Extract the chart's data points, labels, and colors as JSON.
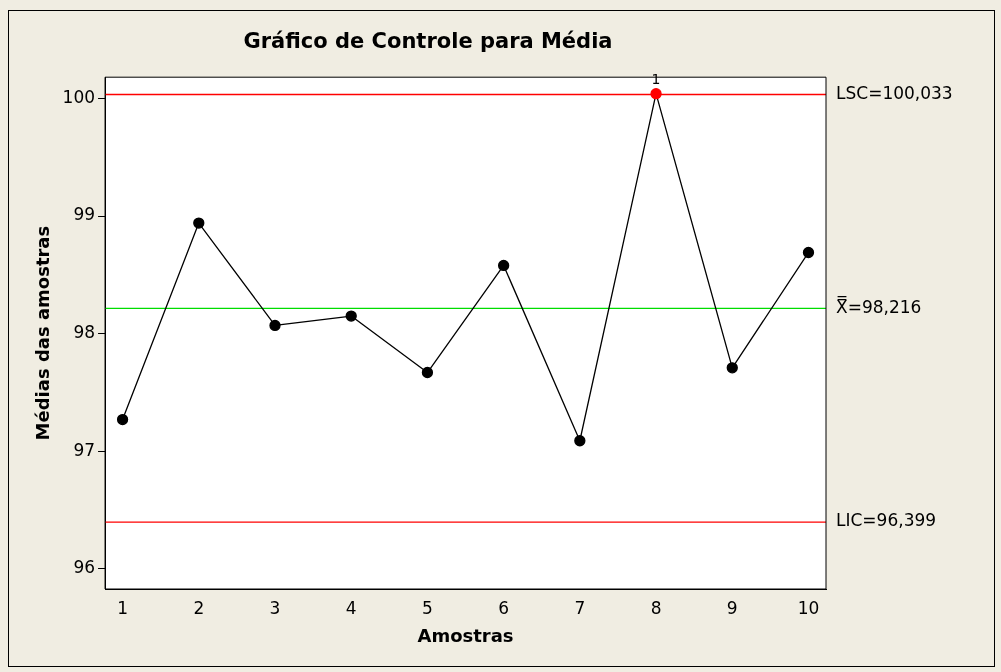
{
  "chart_data": {
    "type": "line",
    "title": "Gráfico de Controle para Média",
    "xlabel": "Amostras",
    "ylabel": "Médias das amostras",
    "x": [
      1,
      2,
      3,
      4,
      5,
      6,
      7,
      8,
      9,
      10
    ],
    "series": [
      {
        "color": "#000000",
        "colors": [
          "#000000",
          "#000000",
          "#000000",
          "#000000",
          "#000000",
          "#000000",
          "#000000",
          "#ff0000",
          "#000000",
          "#000000"
        ],
        "values": [
          97.27,
          98.94,
          98.07,
          98.15,
          97.67,
          98.58,
          97.09,
          100.04,
          97.71,
          98.69
        ]
      }
    ],
    "xlim": [
      0.77,
      10.23
    ],
    "xticks": [
      1,
      2,
      3,
      4,
      5,
      6,
      7,
      8,
      9,
      10
    ],
    "ylim": [
      95.83,
      100.18
    ],
    "yticks": [
      96,
      97,
      98,
      99,
      100
    ],
    "ref_lines": [
      {
        "axis": "y",
        "value": 100.033,
        "label": "LSC=100,033",
        "color": "#ff0000"
      },
      {
        "axis": "y",
        "value": 98.216,
        "label": "X̿=98,216",
        "color": "#00dd00"
      },
      {
        "axis": "y",
        "value": 96.399,
        "label": "LIC=96,399",
        "color": "#ff0000"
      }
    ],
    "annotations": [
      {
        "text": "1",
        "x": 8,
        "y": 100.04
      }
    ],
    "marker": "circle",
    "line_style": "solid",
    "grid": false,
    "legend": false
  }
}
